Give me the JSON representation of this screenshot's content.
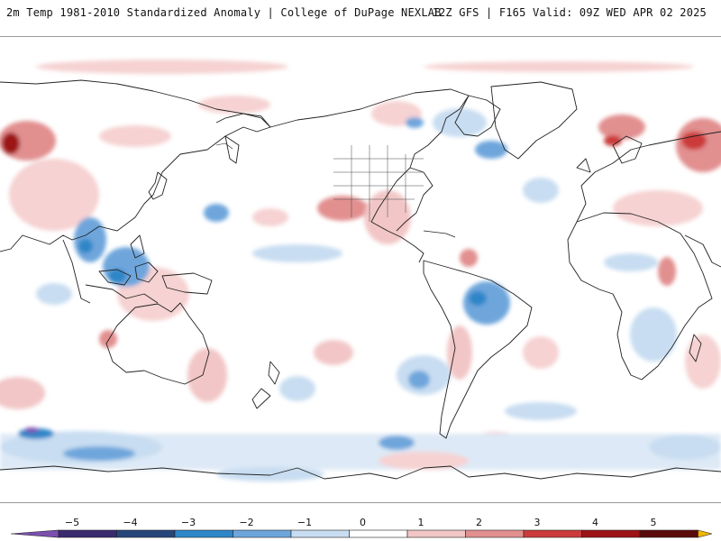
{
  "header": {
    "title": "2m Temp 1981-2010 Standardized Anomaly | College of DuPage NEXLAB",
    "run_info": "12Z GFS | F165 Valid: 09Z WED APR 02 2025"
  },
  "colorbar": {
    "ticks": [
      "-5",
      "-4",
      "-3",
      "-2",
      "-1",
      "0",
      "1",
      "2",
      "3",
      "4",
      "5"
    ],
    "colors": [
      "#3b2a6e",
      "#27467a",
      "#2f86c8",
      "#6ea6dc",
      "#c8ddf1",
      "#ffffff",
      "#f2c6c6",
      "#e28f8f",
      "#cc3b3b",
      "#9c1217",
      "#5a0a0a"
    ],
    "end_colors": {
      "low": "#7c4fb0",
      "high": "#f0b800"
    }
  },
  "map": {
    "projection": "global cylindrical, centered on the Pacific",
    "land_outline_color": "#222222"
  }
}
